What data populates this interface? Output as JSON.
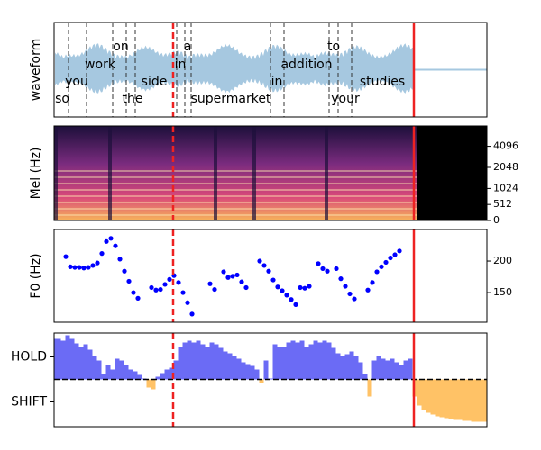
{
  "chart_data": [
    {
      "type": "waveform",
      "ylabel": "waveform",
      "color": "#a6c8e0",
      "words": [
        "so",
        "you",
        "work",
        "on",
        "the",
        "side",
        "in",
        "a",
        "supermarket",
        "in",
        "addition",
        "to",
        "your",
        "studies"
      ]
    },
    {
      "type": "spectrogram",
      "ylabel": "Mel (Hz)",
      "yscale": "mel",
      "ylim": [
        0,
        8000
      ],
      "yticks": [
        0,
        512,
        1024,
        2048,
        4096
      ]
    },
    {
      "type": "scatter",
      "ylabel": "F0 (Hz)",
      "color": "#0000ff",
      "ylim": [
        103,
        250
      ],
      "yticks": [
        150,
        200
      ],
      "values": [
        207,
        191,
        190,
        190,
        189,
        190,
        193,
        197,
        212,
        231,
        236,
        224,
        203,
        184,
        168,
        150,
        141,
        null,
        null,
        158,
        154,
        155,
        163,
        171,
        177,
        166,
        150,
        134,
        116,
        null,
        null,
        null,
        164,
        155,
        null,
        183,
        174,
        176,
        178,
        167,
        158,
        null,
        null,
        200,
        193,
        184,
        170,
        159,
        153,
        146,
        139,
        131,
        158,
        157,
        160,
        null,
        196,
        188,
        184,
        null,
        188,
        172,
        160,
        148,
        140,
        null,
        null,
        154,
        166,
        183,
        191,
        198,
        205,
        210,
        216
      ]
    },
    {
      "type": "area",
      "positive_color": "#6b6bf5",
      "negative_color": "#ffc266",
      "ylim": [
        -1.05,
        1.03
      ],
      "yticks": [
        {
          "value": 0.5,
          "label": "HOLD"
        },
        {
          "value": -0.5,
          "label": "SHIFT"
        }
      ],
      "values": [
        0.9,
        0.9,
        0.86,
        0.98,
        0.9,
        0.8,
        0.72,
        0.78,
        0.66,
        0.52,
        0.42,
        0.12,
        0.32,
        0.22,
        0.46,
        0.42,
        0.32,
        0.22,
        0.18,
        0.1,
        0.02,
        -0.18,
        -0.22,
        0.06,
        0.14,
        0.22,
        0.26,
        0.42,
        0.72,
        0.82,
        0.86,
        0.82,
        0.86,
        0.78,
        0.72,
        0.82,
        0.78,
        0.7,
        0.62,
        0.58,
        0.52,
        0.46,
        0.38,
        0.34,
        0.3,
        0.22,
        -0.08,
        0.42,
        0.02,
        0.78,
        0.72,
        0.72,
        0.82,
        0.86,
        0.82,
        0.86,
        0.72,
        0.78,
        0.86,
        0.82,
        0.86,
        0.82,
        0.7,
        0.58,
        0.52,
        0.56,
        0.62,
        0.52,
        0.38,
        0.12,
        -0.38,
        0.42,
        0.52,
        0.46,
        0.42,
        0.46,
        0.38,
        0.32,
        0.42,
        0.46,
        -0.38,
        -0.58,
        -0.68,
        -0.74,
        -0.78,
        -0.82,
        -0.84,
        -0.86,
        -0.88,
        -0.9,
        -0.9,
        -0.92,
        -0.92,
        -0.94,
        -0.94,
        -0.94,
        -0.94
      ]
    }
  ]
}
